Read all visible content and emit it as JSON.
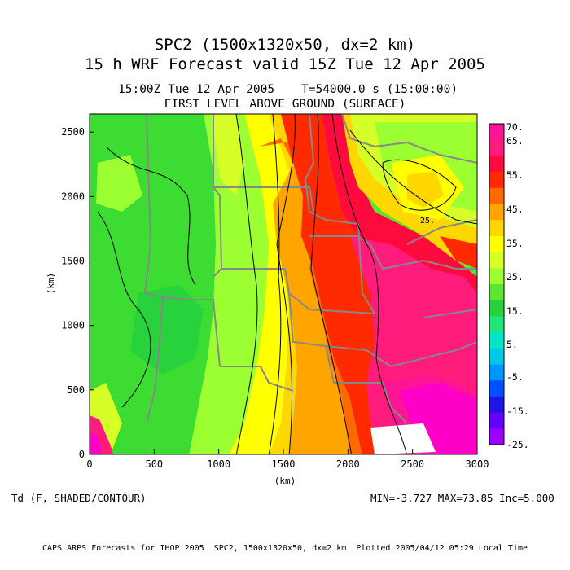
{
  "header": {
    "title_line1": "SPC2 (1500x1320x50, dx=2 km)",
    "title_line2": "15 h WRF Forecast valid 15Z Tue 12 Apr 2005",
    "subtitle_time": "15:00Z Tue 12 Apr 2005",
    "subtitle_seconds": "T=54000.0 s (15:00:00)",
    "subtitle_level": "FIRST LEVEL ABOVE GROUND (SURFACE)"
  },
  "plot": {
    "x_axis_label": "(km)",
    "y_axis_label": "(km)",
    "x_ticks": [
      "0",
      "500",
      "1000",
      "1500",
      "2000",
      "2500",
      "3000"
    ],
    "y_ticks": [
      "0",
      "500",
      "1000",
      "1500",
      "2000",
      "2500"
    ],
    "contour_label": "25."
  },
  "colorbar": {
    "labels": [
      "70.",
      "65.",
      "55.",
      "45.",
      "35.",
      "25.",
      "15.",
      "5.",
      "-5.",
      "-15.",
      "-25."
    ],
    "colors": [
      "#ff1493",
      "#ff1c7c",
      "#ff0a3c",
      "#ff2a00",
      "#ff6a00",
      "#ffa500",
      "#ffd700",
      "#ffff00",
      "#d6ff28",
      "#9cff32",
      "#5ae632",
      "#28d23c",
      "#1ee678",
      "#00e6c8",
      "#00c8e6",
      "#0096ff",
      "#0050ff",
      "#1e14e6",
      "#6400ff",
      "#9b00ff"
    ]
  },
  "footer": {
    "variable_label": "Td (F, SHADED/CONTOUR)",
    "stats": "MIN=-3.727 MAX=73.85 Inc=5.000",
    "credits": "CAPS ARPS Forecasts for IHOP 2005  SPC2, 1500x1320x50, dx=2 km  Plotted 2005/04/12 05:29 Local Time"
  }
}
